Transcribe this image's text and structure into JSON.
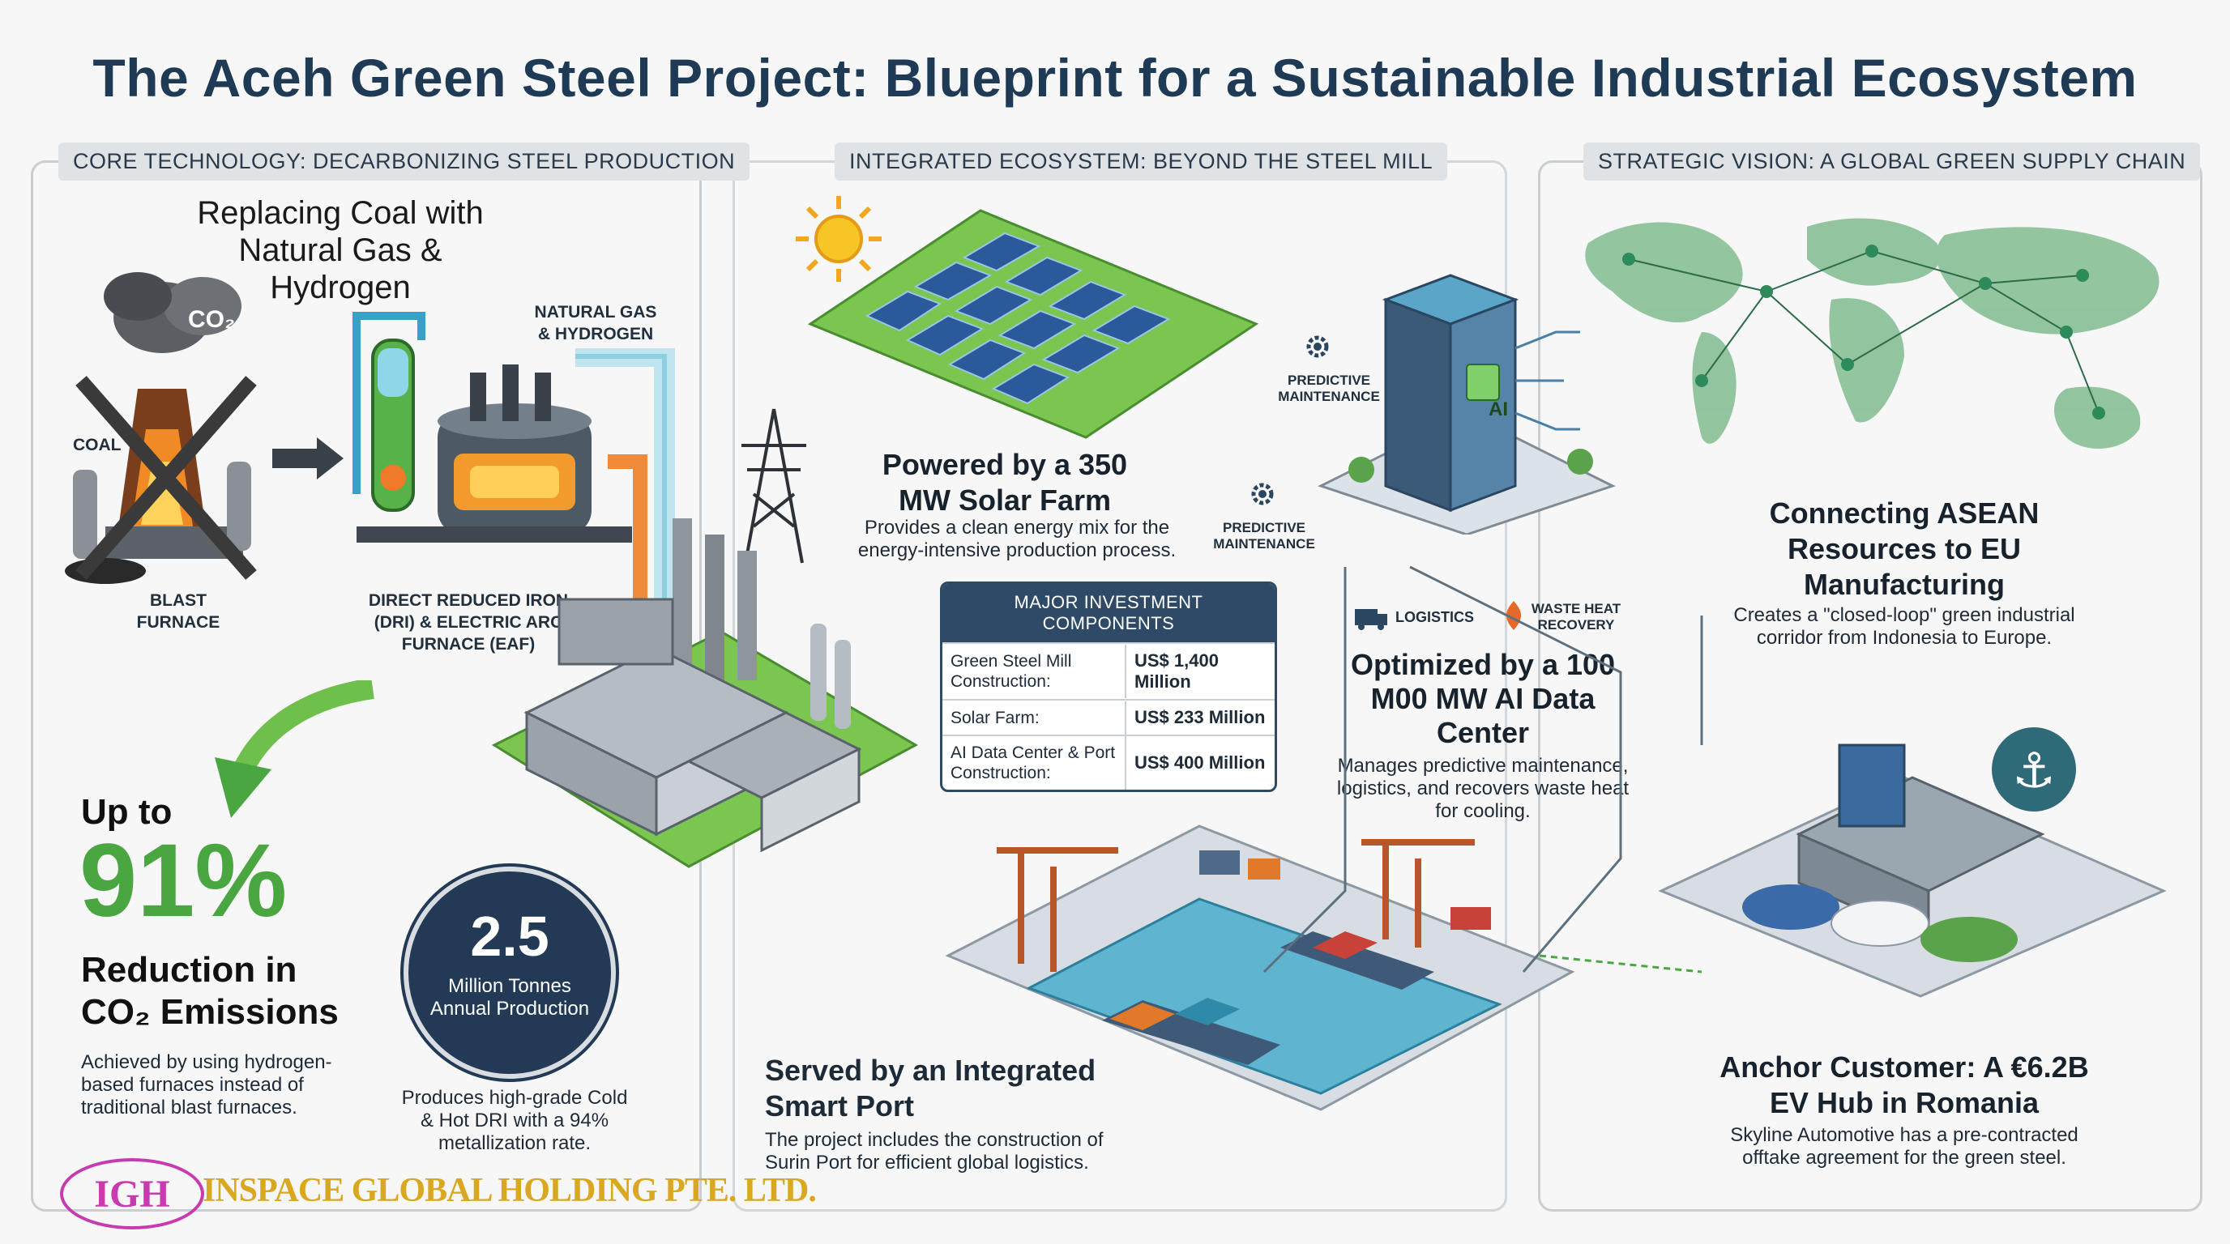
{
  "title": "The Aceh Green Steel Project: Blueprint for a Sustainable Industrial Ecosystem",
  "panels": {
    "core": "CORE TECHNOLOGY: DECARBONIZING STEEL PRODUCTION",
    "ecosystem": "INTEGRATED ECOSYSTEM: BEYOND THE STEEL MILL",
    "vision": "STRATEGIC VISION: A GLOBAL GREEN SUPPLY CHAIN"
  },
  "core": {
    "heading": "Replacing Coal with Natural Gas & Hydrogen",
    "co2": "CO₂",
    "coal": "COAL",
    "blast_furnace": "BLAST FURNACE",
    "natural_gas": "NATURAL GAS & HYDROGEN",
    "dri": "DIRECT REDUCED IRON (DRI) & ELECTRIC ARC FURNACE (EAF)",
    "up_to": "Up to",
    "percent": "91%",
    "reduction": "Reduction in CO₂ Emissions",
    "achieved": "Achieved by using hydrogen-based furnaces instead of traditional blast furnaces.",
    "production_value": "2.5",
    "production_label": "Million Tonnes Annual Production",
    "produces": "Produces high-grade Cold & Hot DRI with a 94% metallization rate."
  },
  "ecosystem": {
    "solar_title": "Powered by a 350 MW Solar Farm",
    "solar_desc": "Provides a clean energy mix for the energy-intensive production process.",
    "invest_title": "MAJOR INVESTMENT COMPONENTS",
    "investments": [
      {
        "name": "Green Steel Mill Construction:",
        "value": "US$ 1,400 Million"
      },
      {
        "name": "Solar Farm:",
        "value": "US$ 233 Million"
      },
      {
        "name": "AI Data Center & Port Construction:",
        "value": "US$ 400 Million"
      }
    ],
    "predictive_1": "PREDICTIVE MAINTENANCE",
    "predictive_2": "PREDICTIVE MAINTENANCE",
    "ai_label": "AI",
    "logistics": "LOGISTICS",
    "waste_heat": "WASTE HEAT RECOVERY",
    "dc_title": "Optimized by a 100 M00 MW AI Data Center",
    "dc_desc": "Manages predictive maintenance, logistics, and recovers waste heat for cooling.",
    "port_title": "Served by an Integrated Smart Port",
    "port_desc": "The project includes the construction of Surin Port for efficient global logistics."
  },
  "vision": {
    "connect_title": "Connecting ASEAN Resources to EU Manufacturing",
    "connect_desc": "Creates a \"closed-loop\" green industrial corridor from Indonesia to Europe.",
    "anchor_title": "Anchor Customer: A €6.2B EV Hub in Romania",
    "anchor_desc": "Skyline Automotive has a pre-contracted offtake agreement for the green steel."
  },
  "logo": {
    "mark": "IGH",
    "company": "INSPACE GLOBAL HOLDING PTE. LTD."
  },
  "colors": {
    "navy": "#1f3a55",
    "green": "#4aa640",
    "accent": "#e07a2a",
    "water": "#5fb4cf"
  }
}
